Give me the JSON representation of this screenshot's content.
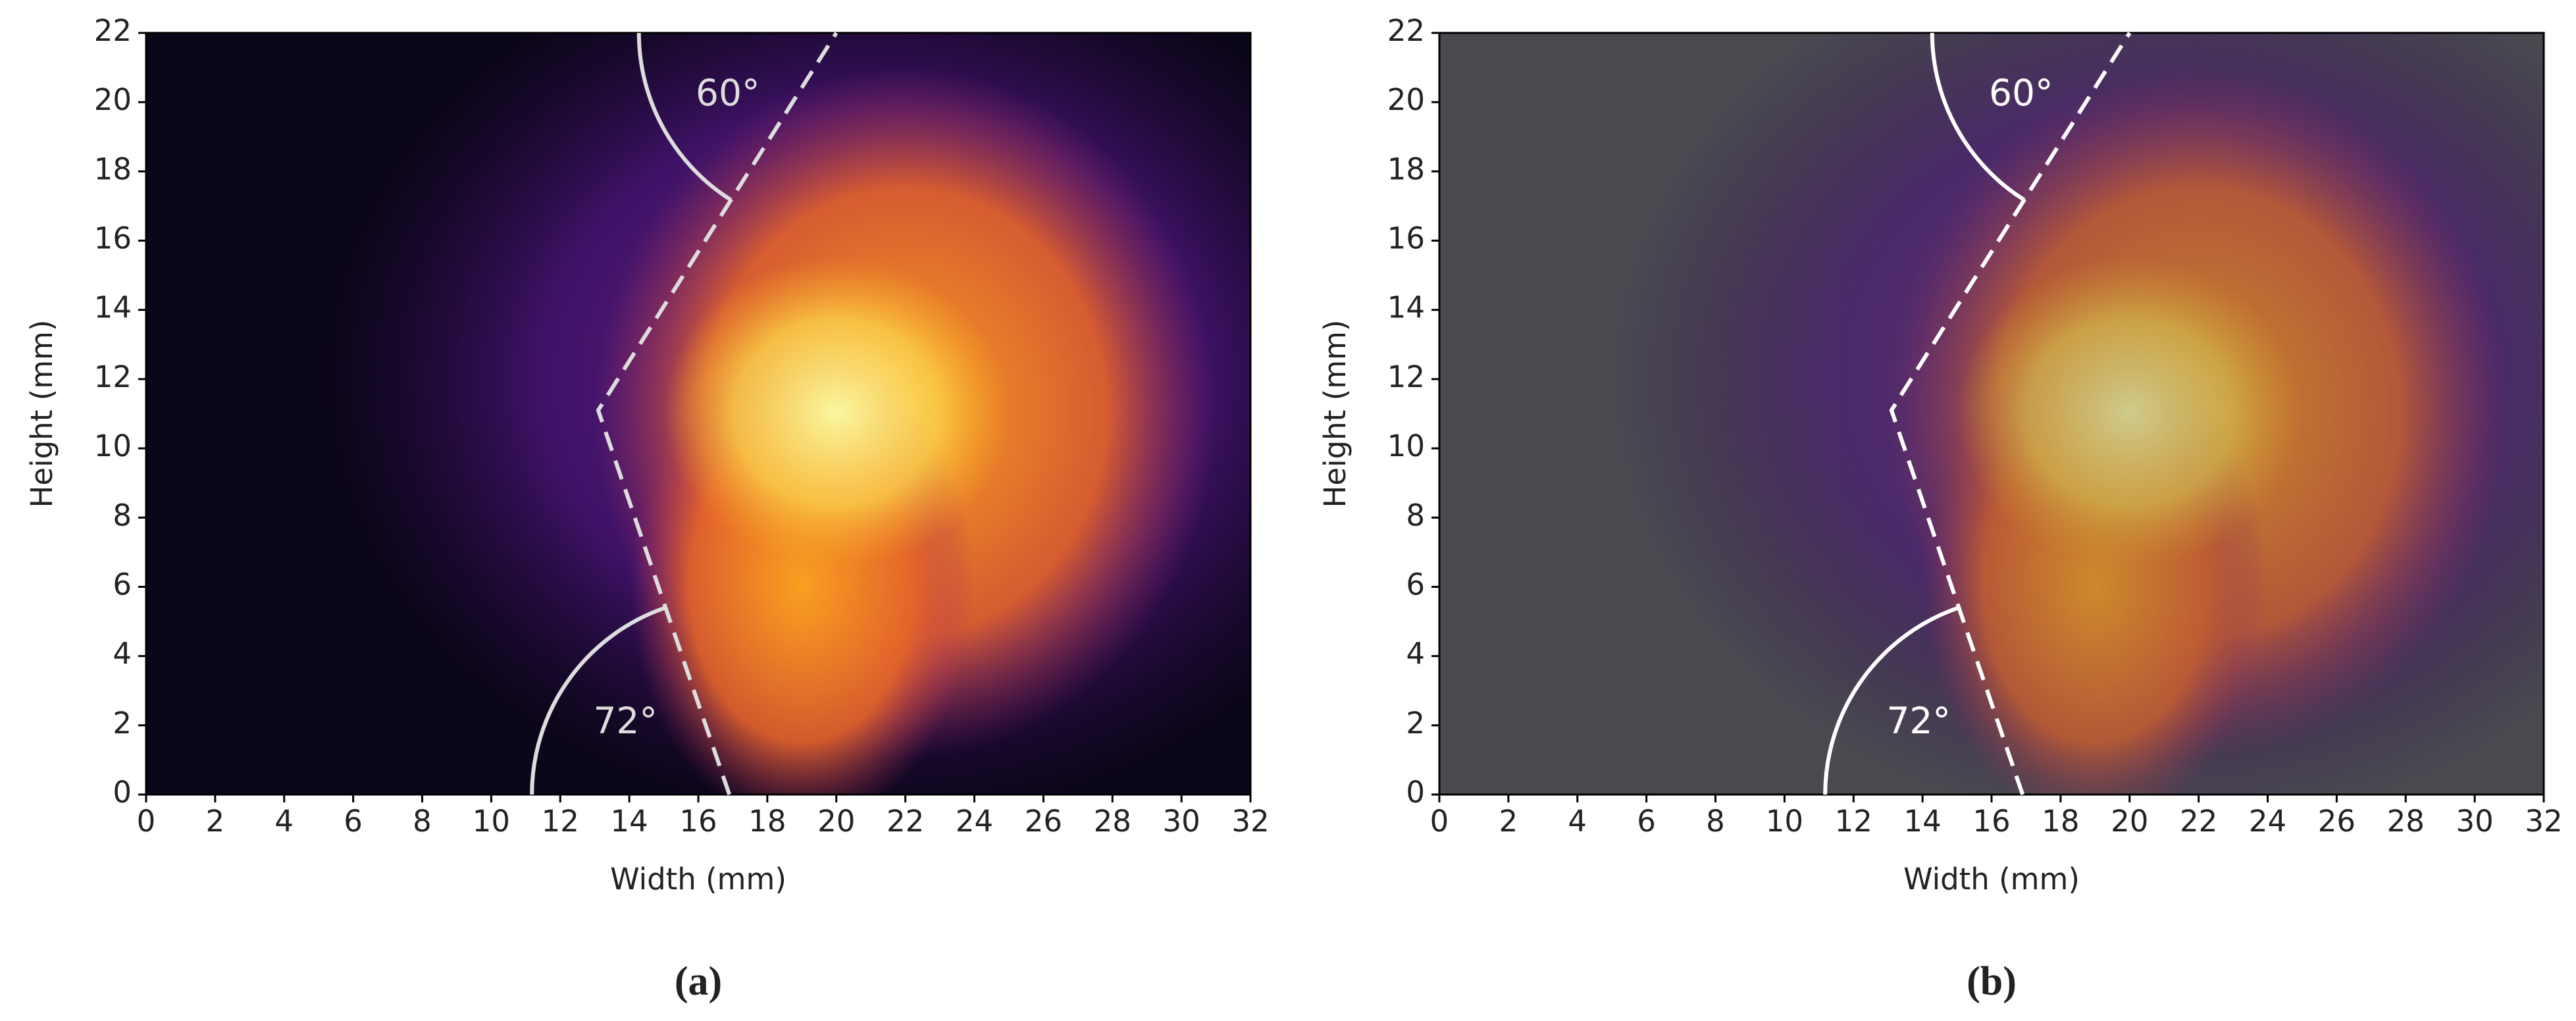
{
  "chart_data": [
    {
      "type": "heatmap",
      "xlabel": "Width (mm)",
      "ylabel": "Height (mm)",
      "caption": "(a)",
      "xlim": [
        0,
        32
      ],
      "ylim": [
        0,
        22
      ],
      "xticks": [
        0,
        2,
        4,
        6,
        8,
        10,
        12,
        14,
        16,
        18,
        20,
        22,
        24,
        26,
        28,
        30,
        32
      ],
      "yticks": [
        0,
        2,
        4,
        6,
        8,
        10,
        12,
        14,
        16,
        18,
        20,
        22
      ],
      "annotations": [
        "60°",
        "72°"
      ],
      "boundary": {
        "x": [
          16.9,
          13.1,
          20.0
        ],
        "values": [
          0,
          11.1,
          22
        ]
      }
    },
    {
      "type": "heatmap",
      "xlabel": "Width (mm)",
      "ylabel": "Height (mm)",
      "caption": "(b)",
      "xlim": [
        0,
        32
      ],
      "ylim": [
        0,
        22
      ],
      "xticks": [
        0,
        2,
        4,
        6,
        8,
        10,
        12,
        14,
        16,
        18,
        20,
        22,
        24,
        26,
        28,
        30,
        32
      ],
      "yticks": [
        0,
        2,
        4,
        6,
        8,
        10,
        12,
        14,
        16,
        18,
        20,
        22
      ],
      "annotations": [
        "60°",
        "72°"
      ],
      "boundary": {
        "x": [
          16.9,
          13.1,
          20.0
        ],
        "values": [
          0,
          11.1,
          22
        ]
      }
    }
  ]
}
